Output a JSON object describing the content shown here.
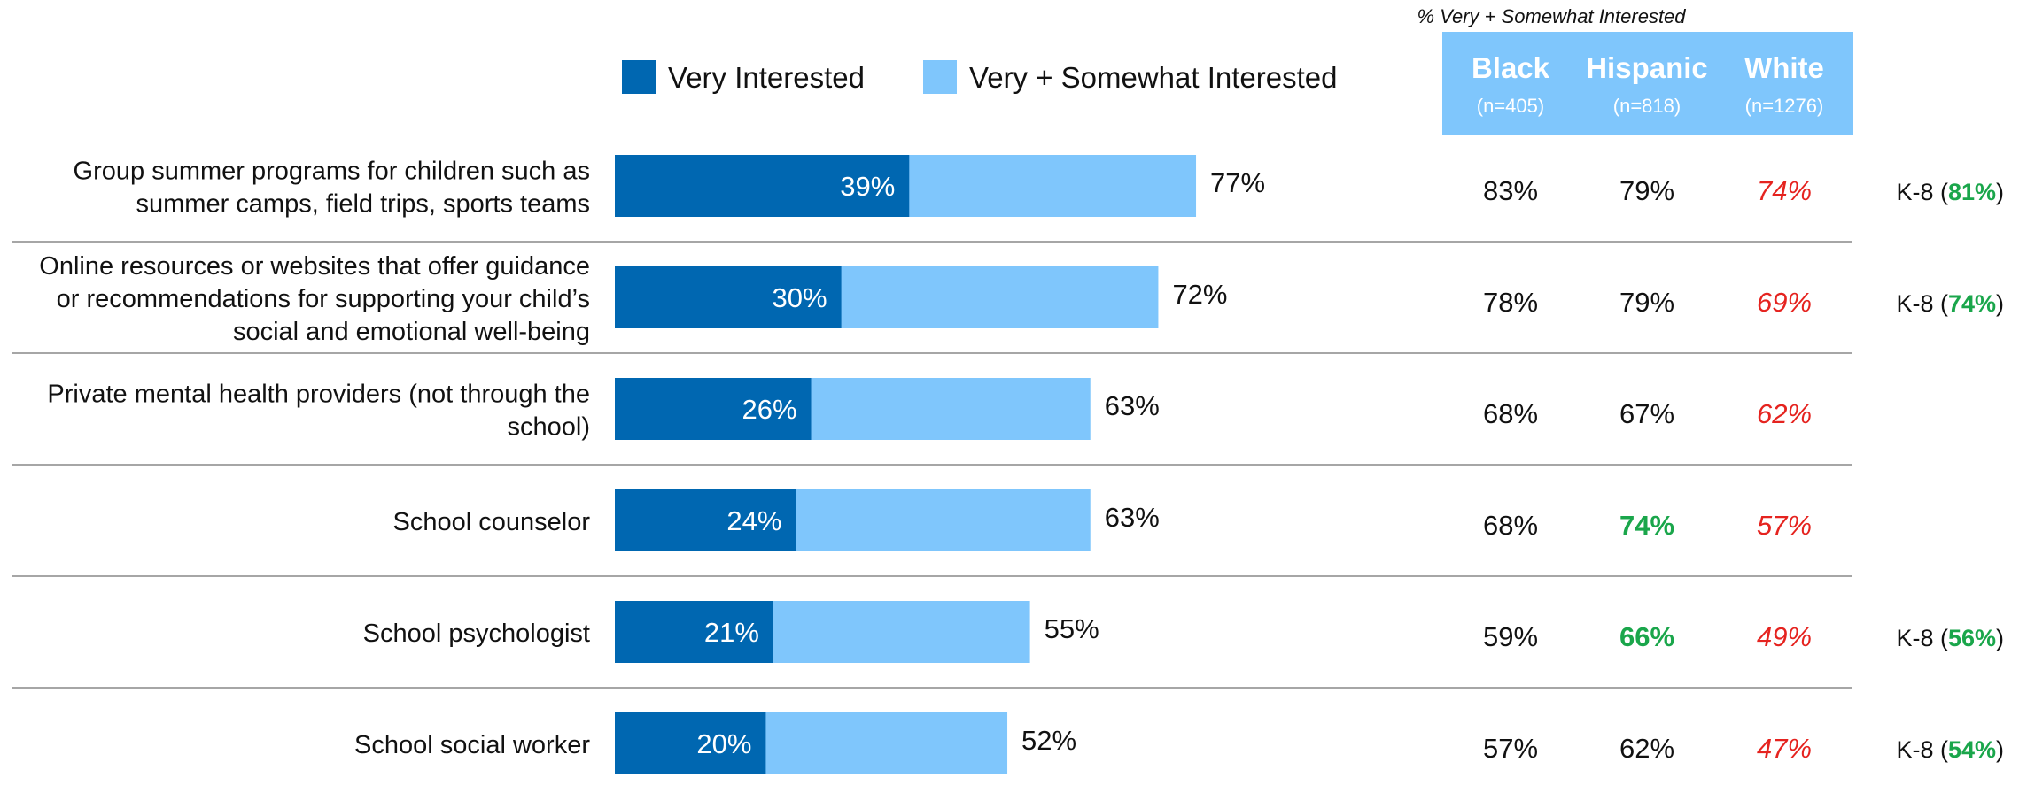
{
  "colors": {
    "very": "#0067b1",
    "very_somewhat": "#7fc6fc",
    "header_bg": "#7fc6fc",
    "highlight_high": "#1aa64b",
    "highlight_low": "#e5231f",
    "divider": "#a6a6a6"
  },
  "legend": {
    "very": "Very Interested",
    "very_somewhat": "Very + Somewhat Interested"
  },
  "table": {
    "caption": "% Very + Somewhat Interested",
    "columns": [
      {
        "name": "Black",
        "n": "(n=405)"
      },
      {
        "name": "Hispanic",
        "n": "(n=818)"
      },
      {
        "name": "White",
        "n": "(n=1276)"
      }
    ]
  },
  "chart_data": {
    "type": "bar",
    "orientation": "horizontal",
    "x_range": [
      0,
      100
    ],
    "grid": false,
    "legend_position": "top",
    "categories": [
      "Group summer programs for children such as summer camps, field trips, sports teams",
      "Online resources or websites that offer guidance or recommendations for supporting your child's social and emotional well-being",
      "Private mental health providers (not through the school)",
      "School counselor",
      "School psychologist",
      "School social worker"
    ],
    "category_lines": [
      [
        "Group summer programs for children such as",
        "summer camps, field trips, sports teams"
      ],
      [
        "Online resources or websites that offer guidance",
        "or recommendations for supporting your child’s",
        "social and emotional well-being"
      ],
      [
        "Private mental health providers (not through the",
        "school)"
      ],
      [
        "School counselor"
      ],
      [
        "School psychologist"
      ],
      [
        "School social worker"
      ]
    ],
    "series": [
      {
        "name": "Very Interested",
        "values": [
          39,
          30,
          26,
          24,
          21,
          20
        ]
      },
      {
        "name": "Very + Somewhat Interested",
        "values": [
          77,
          72,
          63,
          63,
          55,
          52
        ]
      }
    ],
    "labels": {
      "very": [
        "39%",
        "30%",
        "26%",
        "24%",
        "21%",
        "20%"
      ],
      "very_somewhat": [
        "77%",
        "72%",
        "63%",
        "63%",
        "55%",
        "52%"
      ]
    },
    "subgroups": [
      {
        "Black": "83%",
        "Hispanic": "79%",
        "White": "74%",
        "highlight": {
          "White": "low"
        },
        "k8_prefix": "K-8 (",
        "k8_value": "81%",
        "k8_suffix": ")"
      },
      {
        "Black": "78%",
        "Hispanic": "79%",
        "White": "69%",
        "highlight": {
          "White": "low"
        },
        "k8_prefix": "K-8 (",
        "k8_value": "74%",
        "k8_suffix": ")"
      },
      {
        "Black": "68%",
        "Hispanic": "67%",
        "White": "62%",
        "highlight": {
          "White": "low"
        },
        "k8_prefix": "",
        "k8_value": "",
        "k8_suffix": ""
      },
      {
        "Black": "68%",
        "Hispanic": "74%",
        "White": "57%",
        "highlight": {
          "Hispanic": "high",
          "White": "low"
        },
        "k8_prefix": "",
        "k8_value": "",
        "k8_suffix": ""
      },
      {
        "Black": "59%",
        "Hispanic": "66%",
        "White": "49%",
        "highlight": {
          "Hispanic": "high",
          "White": "low"
        },
        "k8_prefix": "K-8 (",
        "k8_value": "56%",
        "k8_suffix": ")"
      },
      {
        "Black": "57%",
        "Hispanic": "62%",
        "White": "47%",
        "highlight": {
          "White": "low"
        },
        "k8_prefix": "K-8 (",
        "k8_value": "54%",
        "k8_suffix": ")"
      }
    ]
  }
}
